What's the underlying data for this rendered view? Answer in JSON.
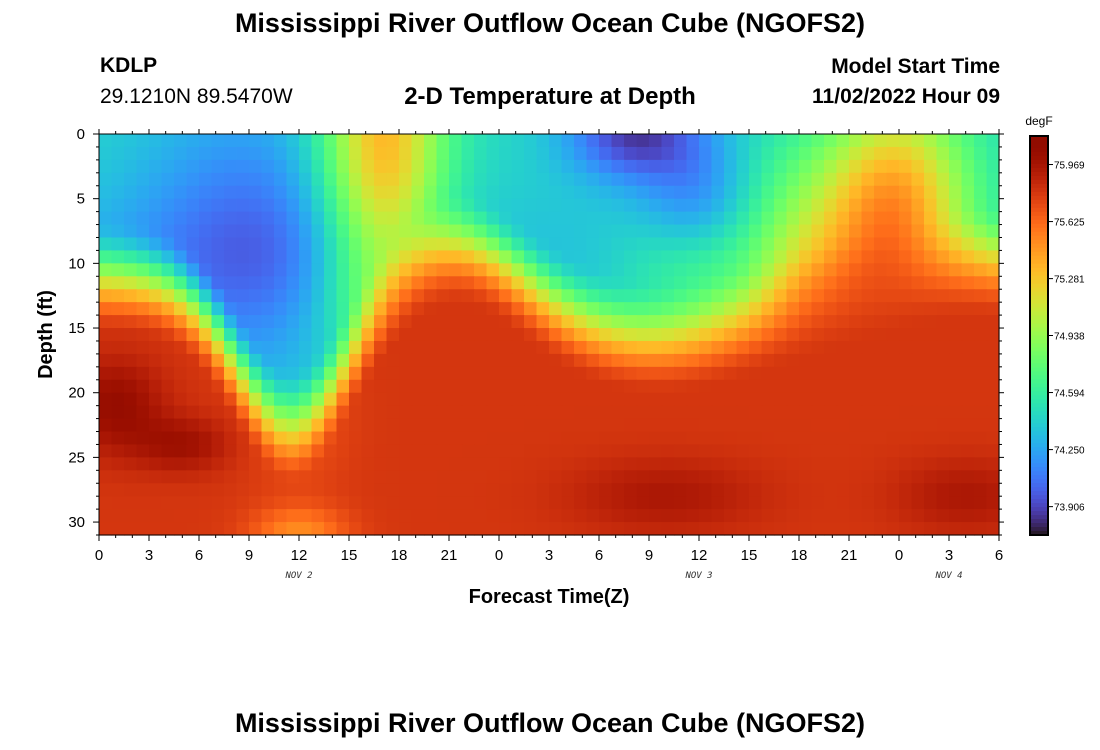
{
  "header": {
    "title": "Mississippi River Outflow Ocean Cube (NGOFS2)",
    "station_id": "KDLP",
    "station_coords": "29.1210N  89.5470W",
    "subtitle": "2-D Temperature at Depth",
    "start_label": "Model Start Time",
    "start_value": "11/02/2022 Hour 09"
  },
  "footer": {
    "title": "Mississippi River Outflow Ocean Cube (NGOFS2)"
  },
  "chart_data": {
    "type": "heatmap",
    "xlabel": "Forecast Time(Z)",
    "ylabel": "Depth (ft)",
    "x_tick_labels": [
      "0",
      "3",
      "6",
      "9",
      "12",
      "15",
      "18",
      "21",
      "0",
      "3",
      "6",
      "9",
      "12",
      "15",
      "18",
      "21",
      "0",
      "3",
      "6"
    ],
    "x_range_hours": [
      0,
      54
    ],
    "date_labels": [
      {
        "label": "NOV 2",
        "hour": 12
      },
      {
        "label": "NOV 3",
        "hour": 36
      },
      {
        "label": "NOV 4",
        "hour": 51
      }
    ],
    "y_ticks": [
      0,
      5,
      10,
      15,
      20,
      25,
      30
    ],
    "y_range": [
      0,
      31
    ],
    "y_inverted": true,
    "colorbar": {
      "unit": "degF",
      "min": 73.735,
      "max": 76.141,
      "tick_values": [
        75.969,
        75.625,
        75.281,
        74.938,
        74.594,
        74.25,
        73.906
      ],
      "tick_labels": [
        "75.969",
        "75.625",
        "75.281",
        "74.938",
        "74.594",
        "74.250",
        "73.906"
      ],
      "colormap": "turbo"
    }
  }
}
